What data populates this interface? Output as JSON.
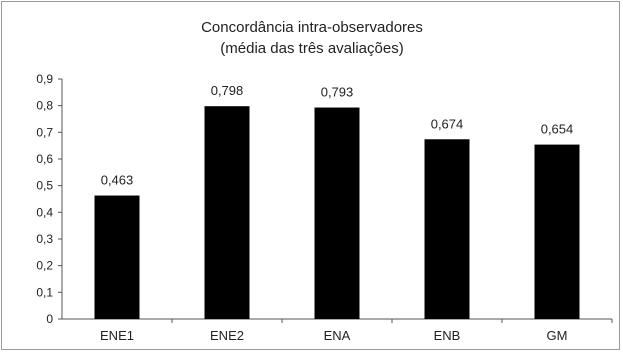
{
  "chart_data": {
    "type": "bar",
    "title": "Concordância intra-observadores",
    "subtitle": "(média das três avaliações)",
    "categories": [
      "ENE1",
      "ENE2",
      "ENA",
      "ENB",
      "GM"
    ],
    "values": [
      0.463,
      0.798,
      0.793,
      0.674,
      0.654
    ],
    "value_labels": [
      "0,463",
      "0,798",
      "0,793",
      "0,674",
      "0,654"
    ],
    "ylim": [
      0,
      0.9
    ],
    "yticks": [
      0,
      0.1,
      0.2,
      0.3,
      0.4,
      0.5,
      0.6,
      0.7,
      0.8,
      0.9
    ],
    "ytick_labels": [
      "0",
      "0,1",
      "0,2",
      "0,3",
      "0,4",
      "0,5",
      "0,6",
      "0,7",
      "0,8",
      "0,9"
    ],
    "xlabel": "",
    "ylabel": "",
    "grid": false,
    "legend": "none",
    "bar_color": "#000000"
  }
}
